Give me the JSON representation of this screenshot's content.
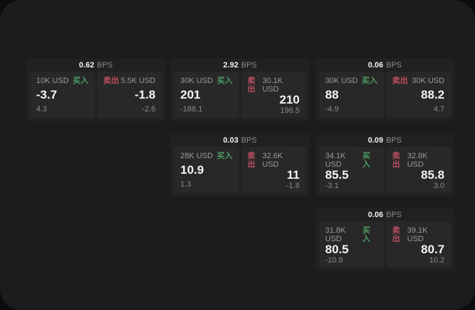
{
  "labels": {
    "bps_unit": "BPS",
    "buy": "买入",
    "sell": "卖出"
  },
  "colors": {
    "backdrop": "#0c0c0c",
    "page_bg": "#1c1c1c",
    "card_bg": "#212121",
    "panel_bg": "#282828",
    "buy_green": "#4d9c61",
    "sell_red": "#bd4d62",
    "text_primary": "#f5f5f5",
    "text_muted": "#9b9b9b"
  },
  "cards": [
    {
      "bps": "0.62",
      "buy": {
        "notional": "10K USD",
        "price": "-3.7",
        "delta": "4.3"
      },
      "sell": {
        "notional": "5.5K USD",
        "price": "-1.8",
        "delta": "-2.6"
      }
    },
    {
      "bps": "2.92",
      "buy": {
        "notional": "30K USD",
        "price": "201",
        "delta": "-188.1"
      },
      "sell": {
        "notional": "30.1K USD",
        "price": "210",
        "delta": "196.5"
      }
    },
    {
      "bps": "0.06",
      "buy": {
        "notional": "30K USD",
        "price": "88",
        "delta": "-4.9"
      },
      "sell": {
        "notional": "30K USD",
        "price": "88.2",
        "delta": "4.7"
      }
    },
    {
      "bps": "0.03",
      "buy": {
        "notional": "28K USD",
        "price": "10.9",
        "delta": "1.3"
      },
      "sell": {
        "notional": "32.6K USD",
        "price": "11",
        "delta": "-1.8"
      }
    },
    {
      "bps": "0.09",
      "buy": {
        "notional": "34.1K USD",
        "price": "85.5",
        "delta": "-3.1"
      },
      "sell": {
        "notional": "32.8K USD",
        "price": "85.8",
        "delta": "3.0"
      }
    },
    {
      "bps": "0.06",
      "buy": {
        "notional": "31.8K USD",
        "price": "80.5",
        "delta": "-10.8"
      },
      "sell": {
        "notional": "39.1K USD",
        "price": "80.7",
        "delta": "10.2"
      }
    }
  ]
}
